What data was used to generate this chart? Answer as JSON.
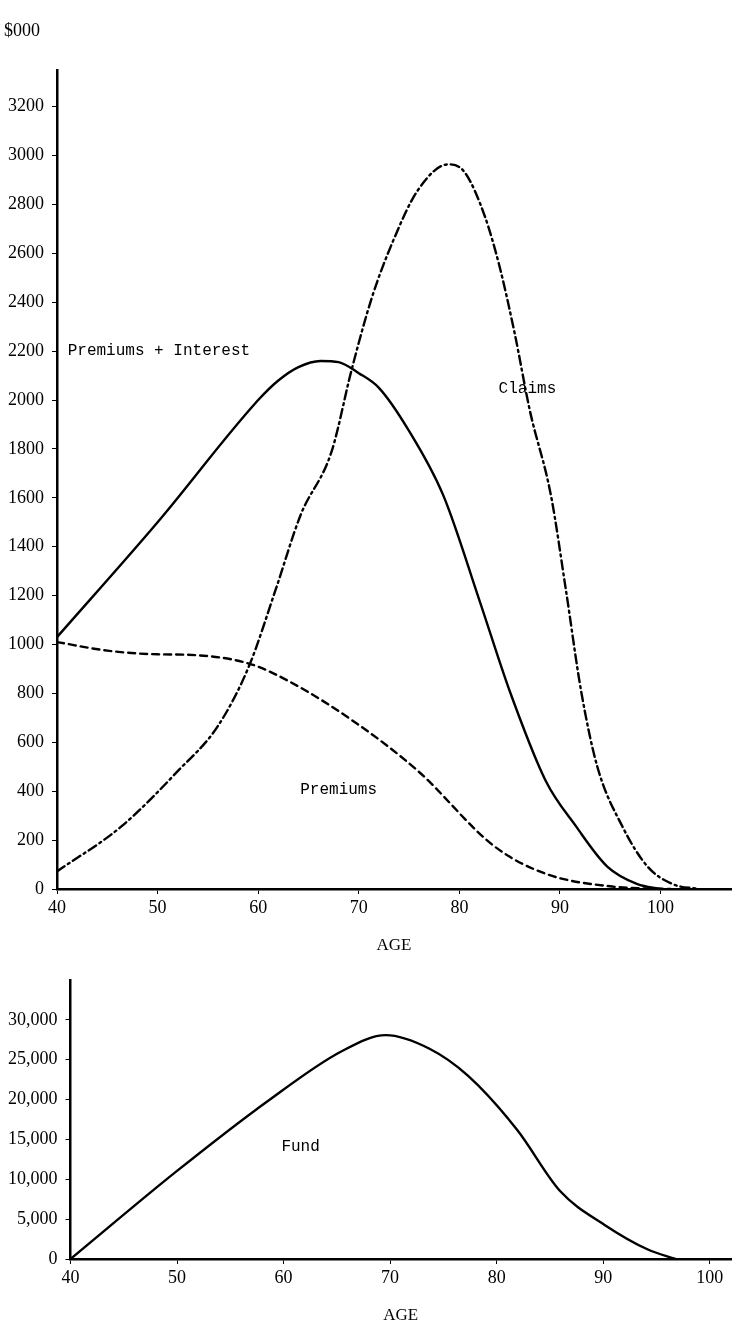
{
  "chart_data": [
    {
      "type": "line",
      "ylabel": "$000",
      "xlabel": "AGE",
      "xlim": [
        40,
        107
      ],
      "xticks": [
        40,
        50,
        60,
        70,
        80,
        90,
        100
      ],
      "ylim": [
        0,
        3350
      ],
      "yticks": [
        0,
        200,
        400,
        600,
        800,
        1000,
        1200,
        1400,
        1600,
        1800,
        2000,
        2200,
        2400,
        2600,
        2800,
        3000,
        3200
      ],
      "grid": false,
      "legend": false,
      "marker": "none",
      "series": [
        {
          "name": "Premiums + Interest",
          "color": "#000000",
          "line_style": "solid",
          "x": [
            40,
            50,
            60,
            62,
            64,
            66.2,
            68,
            70,
            72,
            74.9,
            78.4,
            82,
            85,
            88.6,
            91.6,
            94.7,
            97.7,
            100
          ],
          "values": [
            1030,
            1500,
            2000,
            2080,
            2135,
            2160,
            2155,
            2110,
            2050,
            1880,
            1610,
            1180,
            810,
            441,
            256,
            92,
            20,
            0
          ]
        },
        {
          "name": "Premiums",
          "color": "#000000",
          "line_style": "dashed",
          "x": [
            40,
            45,
            50,
            53,
            59,
            63,
            69.8,
            75.9,
            83.5,
            88.6,
            95.2,
            101
          ],
          "values": [
            1010,
            975,
            960,
            958,
            923,
            851,
            677,
            482,
            174,
            62,
            10,
            0
          ]
        },
        {
          "name": "Claims",
          "color": "#000000",
          "line_style": "dashdot",
          "x": [
            40,
            46.4,
            52,
            56,
            59.1,
            61.7,
            64.2,
            67.3,
            69.3,
            71.3,
            73.4,
            75.9,
            78.9,
            80.5,
            82.5,
            84,
            85.5,
            87,
            89.1,
            90.6,
            92.1,
            93.7,
            96.2,
            98.7,
            101.2,
            103.8
          ],
          "values": [
            72,
            256,
            482,
            667,
            913,
            1220,
            1528,
            1790,
            2126,
            2419,
            2650,
            2860,
            2964,
            2933,
            2755,
            2545,
            2272,
            1958,
            1610,
            1220,
            810,
            502,
            256,
            92,
            20,
            0
          ]
        }
      ]
    },
    {
      "type": "line",
      "xlabel": "AGE",
      "xlim": [
        40,
        102
      ],
      "xticks": [
        40,
        50,
        60,
        70,
        80,
        90,
        100
      ],
      "ylim": [
        0,
        35000
      ],
      "yticks": [
        0,
        {
          "value": 5000,
          "label": "5,000"
        },
        {
          "value": 10000,
          "label": "10,000"
        },
        {
          "value": 15000,
          "label": "15,000"
        },
        {
          "value": 20000,
          "label": "20,000"
        },
        {
          "value": 25000,
          "label": "25,000"
        },
        {
          "value": 30000,
          "label": "30,000"
        }
      ],
      "grid": false,
      "legend": false,
      "marker": "none",
      "series": [
        {
          "name": "Fund",
          "color": "#000000",
          "line_style": "solid",
          "x": [
            40,
            50,
            58.3,
            65.5,
            69.6,
            73.7,
            77.3,
            81.9,
            86,
            90.1,
            94.2,
            96.8
          ],
          "values": [
            0,
            11050,
            19600,
            26100,
            28080,
            26370,
            23000,
            16250,
            8460,
            4310,
            1190,
            0
          ]
        }
      ]
    }
  ]
}
